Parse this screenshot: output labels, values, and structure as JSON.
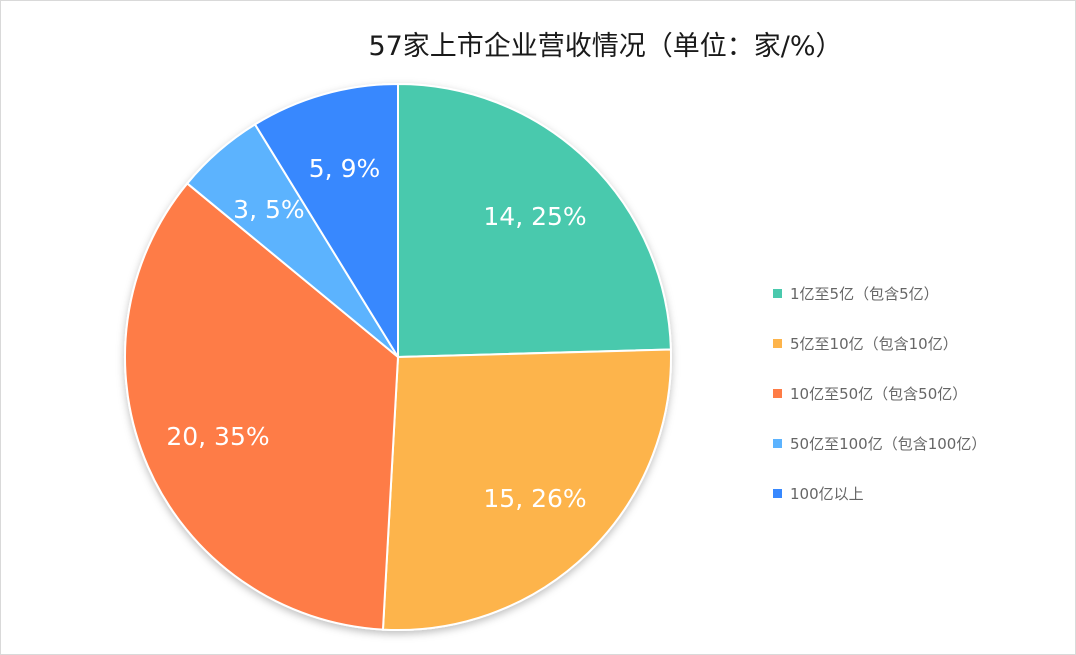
{
  "chart_data": {
    "type": "pie",
    "title": "57家上市企业营收情况（单位：家/%）",
    "categories": [
      "1亿至5亿（包含5亿）",
      "5亿至10亿（包含10亿）",
      "10亿至50亿（包含50亿）",
      "50亿至100亿（包含100亿）",
      "100亿以上"
    ],
    "values": [
      14,
      15,
      20,
      3,
      5
    ],
    "percentages": [
      25,
      26,
      35,
      5,
      9
    ],
    "data_labels": [
      "14, 25%",
      "15, 26%",
      "20, 35%",
      "3, 5%",
      "5, 9%"
    ],
    "colors": [
      "#4ac9ad",
      "#fdb44b",
      "#fe7c46",
      "#5cb3fe",
      "#3788fe"
    ],
    "legend_position": "right"
  }
}
